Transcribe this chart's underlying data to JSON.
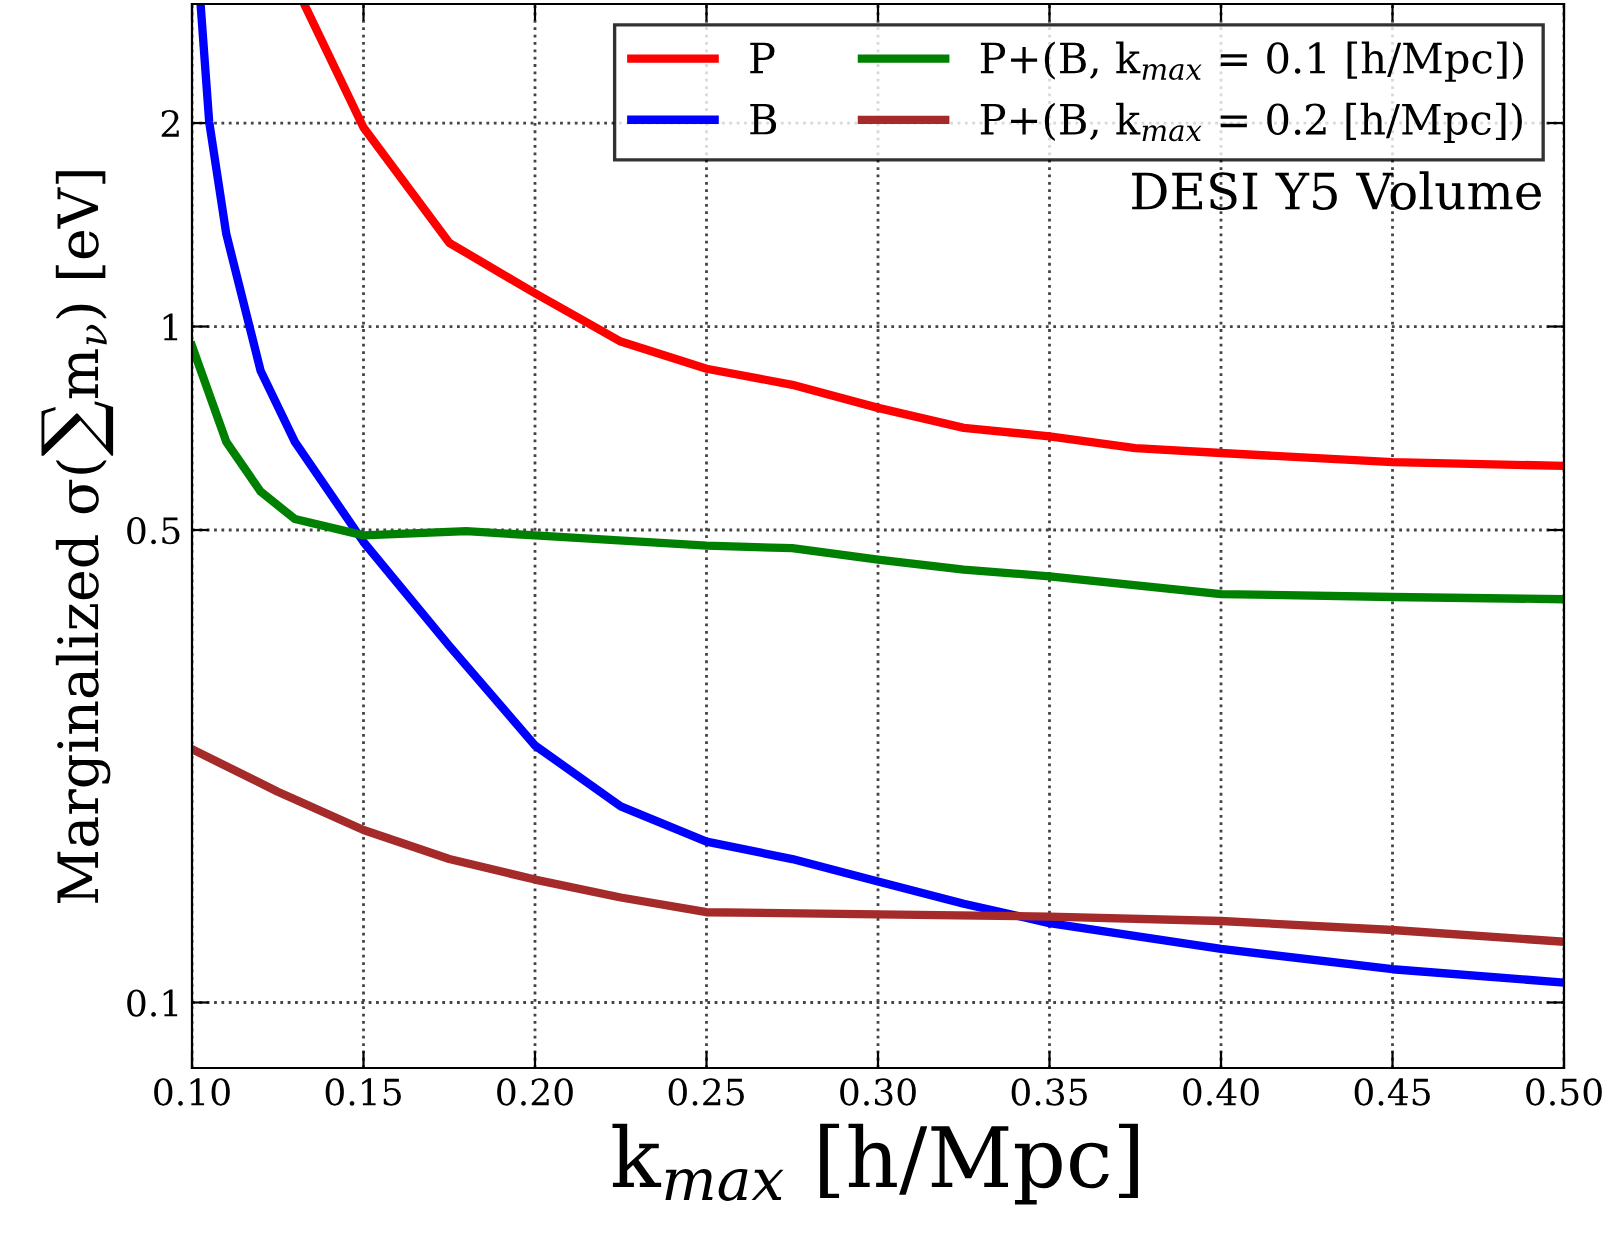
{
  "chart_data": {
    "type": "line",
    "xlabel": "k$_{max}$ [h/Mpc]",
    "ylabel": "Marginalized σ(∑m$_{ν}$) [eV]",
    "annotations": [
      "DESI Y5 Volume"
    ],
    "log": "y",
    "grid": true,
    "legend": "top right",
    "line_style": "solid",
    "marker": "none",
    "xlim": [
      0.1,
      0.5
    ],
    "xticks": [
      {
        "value": 0.1,
        "label": "0.10"
      },
      {
        "value": 0.15,
        "label": "0.15"
      },
      {
        "value": 0.2,
        "label": "0.20"
      },
      {
        "value": 0.25,
        "label": "0.25"
      },
      {
        "value": 0.3,
        "label": "0.30"
      },
      {
        "value": 0.35,
        "label": "0.35"
      },
      {
        "value": 0.4,
        "label": "0.40"
      },
      {
        "value": 0.45,
        "label": "0.45"
      },
      {
        "value": 0.5,
        "label": "0.50"
      }
    ],
    "ylim": [
      0.08,
      3
    ],
    "yticks": [
      0.1,
      0.5,
      1,
      2
    ],
    "series": [
      {
        "name": "P",
        "color": "#ff0000",
        "x": [
          0.1327,
          0.15,
          0.175,
          0.2,
          0.225,
          0.25,
          0.275,
          0.3,
          0.325,
          0.35,
          0.375,
          0.4,
          0.45,
          0.5
        ],
        "values": [
          3.0,
          1.97,
          1.33,
          1.12,
          0.95,
          0.866,
          0.82,
          0.758,
          0.708,
          0.688,
          0.661,
          0.65,
          0.63,
          0.622
        ]
      },
      {
        "name": "B",
        "color": "#0000ff",
        "x": [
          0.1025,
          0.105,
          0.11,
          0.12,
          0.13,
          0.15,
          0.175,
          0.2,
          0.225,
          0.25,
          0.275,
          0.3,
          0.325,
          0.35,
          0.4,
          0.45,
          0.5
        ],
        "values": [
          3.0,
          2.01,
          1.37,
          0.86,
          0.675,
          0.48,
          0.337,
          0.24,
          0.195,
          0.173,
          0.163,
          0.151,
          0.14,
          0.131,
          0.12,
          0.112,
          0.107
        ]
      },
      {
        "name": "P+(B, k$_{max}$ = 0.1 [h/Mpc])",
        "color": "#008000",
        "x": [
          0.1,
          0.11,
          0.12,
          0.13,
          0.15,
          0.18,
          0.2,
          0.25,
          0.275,
          0.3,
          0.325,
          0.35,
          0.4,
          0.45,
          0.5
        ],
        "values": [
          0.936,
          0.675,
          0.57,
          0.519,
          0.491,
          0.498,
          0.491,
          0.474,
          0.47,
          0.452,
          0.437,
          0.427,
          0.402,
          0.398,
          0.395
        ]
      },
      {
        "name": "P+(B, k$_{max}$ = 0.2 [h/Mpc])",
        "color": "#a52a2a",
        "x": [
          0.1,
          0.125,
          0.15,
          0.175,
          0.2,
          0.225,
          0.25,
          0.3,
          0.35,
          0.4,
          0.45,
          0.5
        ],
        "values": [
          0.237,
          0.205,
          0.18,
          0.163,
          0.152,
          0.143,
          0.136,
          0.135,
          0.134,
          0.132,
          0.128,
          0.123
        ]
      }
    ]
  }
}
